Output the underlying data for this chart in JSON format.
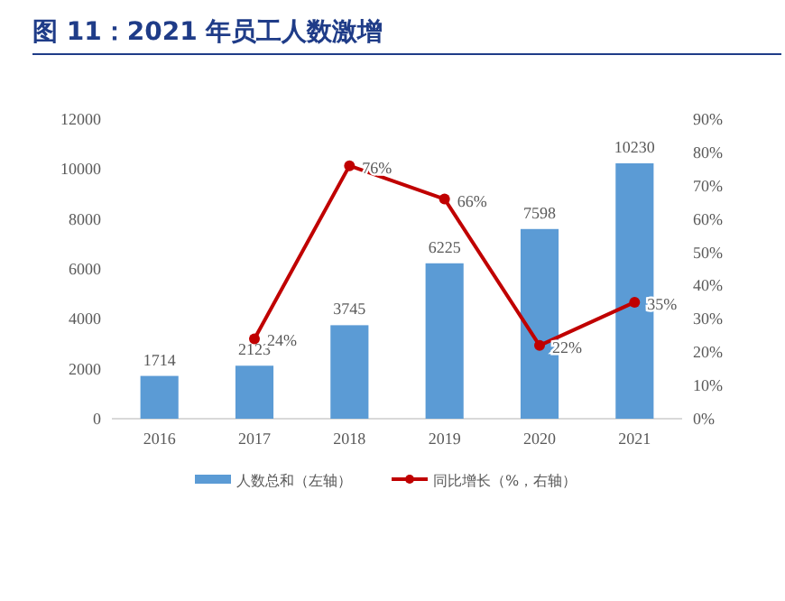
{
  "chart_data": {
    "type": "bar",
    "title": "图 11：2021 年员工人数激增",
    "categories": [
      "2016",
      "2017",
      "2018",
      "2019",
      "2020",
      "2021"
    ],
    "series": [
      {
        "name": "人数总和（左轴）",
        "color": "#5b9bd5",
        "values": [
          1714,
          2123,
          3745,
          6225,
          7598,
          10230
        ],
        "value_labels": [
          "1714",
          "2123",
          "3745",
          "6225",
          "7598",
          "10230"
        ]
      },
      {
        "name": "同比增长（%，右轴）",
        "type": "line",
        "axis": "y2",
        "color": "#c00000",
        "marker": "circle",
        "values": [
          null,
          24,
          76,
          66,
          22,
          35
        ],
        "value_labels": [
          null,
          "24%",
          "76%",
          "66%",
          "22%",
          "35%"
        ]
      }
    ],
    "ylim": [
      0,
      12000
    ],
    "yticks": [
      0,
      2000,
      4000,
      6000,
      8000,
      10000,
      12000
    ],
    "y2lim": [
      0,
      90
    ],
    "y2ticks": [
      {
        "value": 0,
        "label": "0%"
      },
      {
        "value": 10,
        "label": "10%"
      },
      {
        "value": 20,
        "label": "20%"
      },
      {
        "value": 30,
        "label": "30%"
      },
      {
        "value": 40,
        "label": "40%"
      },
      {
        "value": 50,
        "label": "50%"
      },
      {
        "value": 60,
        "label": "60%"
      },
      {
        "value": 70,
        "label": "70%"
      },
      {
        "value": 80,
        "label": "80%"
      },
      {
        "value": 90,
        "label": "90%"
      }
    ],
    "legend": "bottom"
  }
}
